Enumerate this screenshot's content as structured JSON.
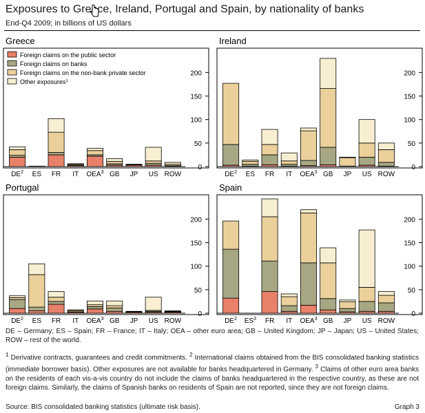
{
  "title": "Exposures to Greece, Ireland, Portugal and Spain, by nationality of banks",
  "subtitle": "End-Q4 2009; in billions of US dollars",
  "legend": [
    {
      "label": "Foreign claims on the public sector",
      "sup": "",
      "color": "#e8806a"
    },
    {
      "label": "Foreign claims on banks",
      "sup": "",
      "color": "#a7a883"
    },
    {
      "label": "Foreign claims on the non-bank private sector",
      "sup": "",
      "color": "#ebd09b"
    },
    {
      "label": "Other exposures",
      "sup": "1",
      "color": "#f8efd2"
    }
  ],
  "chart_data": [
    {
      "type": "bar",
      "stacked": true,
      "title": "Greece",
      "categories": [
        "DE",
        "ES",
        "FR",
        "IT",
        "OEA",
        "GB",
        "JP",
        "US",
        "ROW"
      ],
      "category_sups": [
        "2",
        "",
        "",
        "",
        "3",
        "",
        "",
        "",
        ""
      ],
      "ylim": [
        0,
        240
      ],
      "yticks": [
        0,
        50,
        100,
        150,
        200
      ],
      "grid": false,
      "series": [
        {
          "name": "Foreign claims on the public sector",
          "values": [
            20,
            1,
            25,
            2,
            22,
            3,
            3,
            3,
            1
          ]
        },
        {
          "name": "Foreign claims on banks",
          "values": [
            4,
            0,
            5,
            1,
            3,
            3,
            0,
            4,
            1
          ]
        },
        {
          "name": "Foreign claims on the non-bank private sector",
          "values": [
            12,
            0,
            43,
            2,
            9,
            5,
            1,
            5,
            3
          ]
        },
        {
          "name": "Other exposures",
          "values": [
            6,
            0,
            29,
            1,
            5,
            6,
            1,
            29,
            4
          ]
        }
      ]
    },
    {
      "type": "bar",
      "stacked": true,
      "title": "Ireland",
      "categories": [
        "DE",
        "ES",
        "FR",
        "IT",
        "OEA",
        "GB",
        "JP",
        "US",
        "ROW"
      ],
      "category_sups": [
        "2",
        "",
        "",
        "",
        "3",
        "",
        "",
        "",
        ""
      ],
      "ylim": [
        0,
        240
      ],
      "yticks": [
        0,
        50,
        100,
        150,
        200
      ],
      "grid": false,
      "series": [
        {
          "name": "Foreign claims on the public sector",
          "values": [
            3,
            1,
            4,
            1,
            2,
            4,
            0,
            3,
            1
          ]
        },
        {
          "name": "Foreign claims on banks",
          "values": [
            44,
            4,
            21,
            4,
            11,
            37,
            1,
            17,
            8
          ]
        },
        {
          "name": "Foreign claims on the non-bank private sector",
          "values": [
            130,
            6,
            22,
            7,
            63,
            125,
            18,
            30,
            27
          ]
        },
        {
          "name": "Other exposures",
          "values": [
            0,
            3,
            32,
            17,
            6,
            64,
            1,
            50,
            14
          ]
        }
      ]
    },
    {
      "type": "bar",
      "stacked": true,
      "title": "Portugal",
      "categories": [
        "DE",
        "ES",
        "FR",
        "IT",
        "OEA",
        "GB",
        "JP",
        "US",
        "ROW"
      ],
      "category_sups": [
        "2",
        "",
        "",
        "",
        "3",
        "",
        "",
        "",
        ""
      ],
      "ylim": [
        0,
        240
      ],
      "yticks": [
        0,
        50,
        100,
        150,
        200
      ],
      "grid": false,
      "series": [
        {
          "name": "Foreign claims on the public sector",
          "values": [
            10,
            5,
            19,
            2,
            9,
            4,
            2,
            2,
            2
          ]
        },
        {
          "name": "Foreign claims on banks",
          "values": [
            19,
            8,
            6,
            1,
            5,
            7,
            0,
            2,
            1
          ]
        },
        {
          "name": "Foreign claims on the non-bank private sector",
          "values": [
            4,
            69,
            9,
            3,
            4,
            5,
            1,
            2,
            1
          ]
        },
        {
          "name": "Other exposures",
          "values": [
            4,
            23,
            12,
            1,
            8,
            10,
            1,
            28,
            1
          ]
        }
      ]
    },
    {
      "type": "bar",
      "stacked": true,
      "title": "Spain",
      "categories": [
        "DE",
        "ES",
        "FR",
        "IT",
        "OEA",
        "GB",
        "JP",
        "US",
        "ROW"
      ],
      "category_sups": [
        "2",
        "3",
        "",
        "",
        "3",
        "",
        "",
        "",
        ""
      ],
      "ylim": [
        0,
        240
      ],
      "yticks": [
        0,
        50,
        100,
        150,
        200
      ],
      "grid": false,
      "series": [
        {
          "name": "Foreign claims on the public sector",
          "values": [
            32,
            0,
            46,
            4,
            17,
            7,
            3,
            4,
            4
          ]
        },
        {
          "name": "Foreign claims on banks",
          "values": [
            104,
            0,
            65,
            12,
            90,
            24,
            7,
            21,
            18
          ]
        },
        {
          "name": "Foreign claims on the non-bank private sector",
          "values": [
            60,
            0,
            94,
            19,
            106,
            76,
            14,
            30,
            16
          ]
        },
        {
          "name": "Other exposures",
          "values": [
            0,
            0,
            38,
            6,
            7,
            32,
            4,
            122,
            8
          ]
        }
      ]
    }
  ],
  "footnotes": {
    "abbreviations": "DE – Germany; ES – Spain; FR – France; IT – Italy; OEA – other euro area; GB – United Kingdom; JP – Japan; US – United States; ROW – rest of the world.",
    "sup1": "1",
    "text1": " Derivative contracts, guarantees and credit commitments.   ",
    "sup2": "2",
    "text2": " International claims obtained from the BIS consolidated banking statistics (immediate borrower basis). Other exposures are not available for banks headquartered in Germany.   ",
    "sup3": "3",
    "text3": " Claims of other euro area banks on the residents of each vis-a-vis country do not include the claims of banks headquartered in the respective country, as these are not foreign claims. Similarly, the claims of Spanish banks on residents of Spain are not reported, since they are not foreign claims."
  },
  "source": "Source: BIS consolidated banking statistics (ultimate risk basis).",
  "graph_label": "Graph 3"
}
